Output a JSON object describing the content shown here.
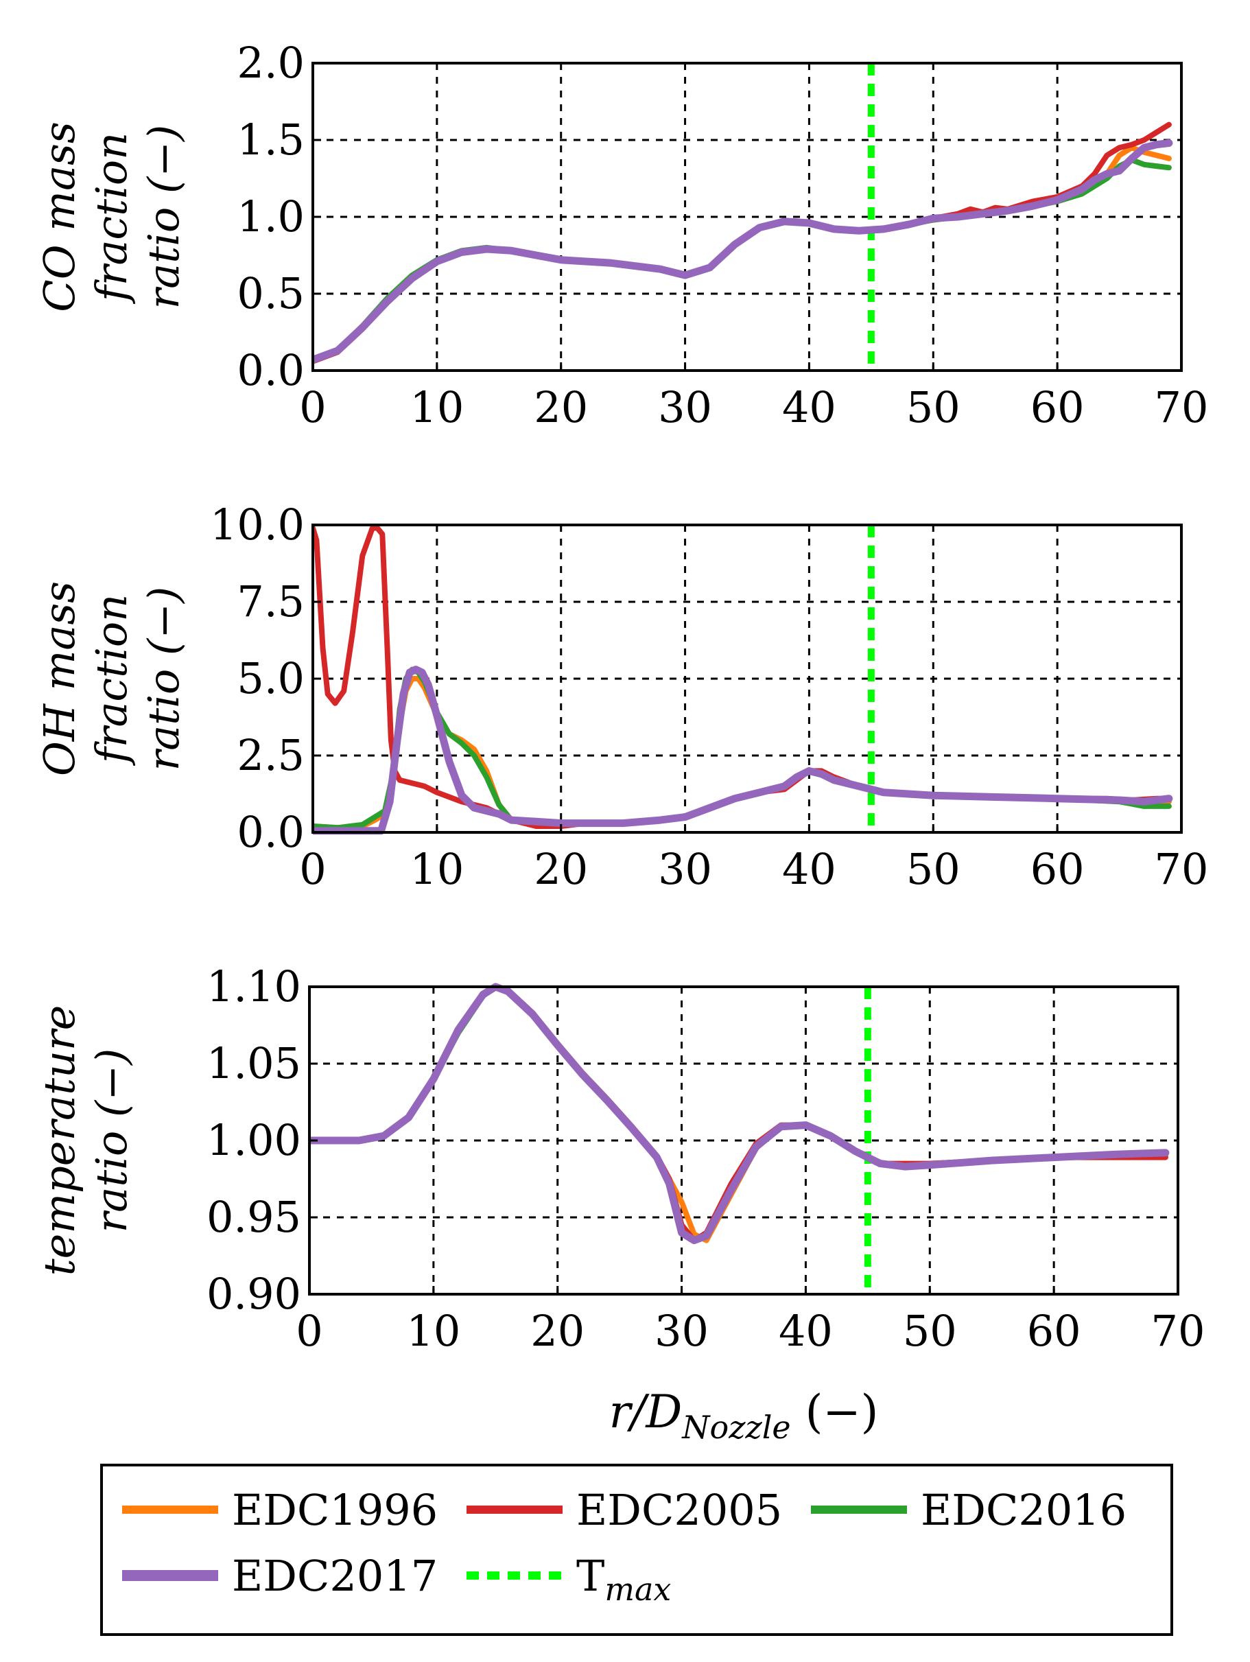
{
  "chart_data": [
    {
      "type": "line",
      "ylabel": [
        "CO mass",
        "fraction",
        "ratio (−)"
      ],
      "xlabel": "",
      "xlim": [
        0,
        70
      ],
      "ylim": [
        0,
        2.0
      ],
      "xticks": [
        "0",
        "10",
        "20",
        "30",
        "40",
        "50",
        "60",
        "70"
      ],
      "yticks": [
        "0.0",
        "0.5",
        "1.0",
        "1.5",
        "2.0"
      ],
      "ytick_values": [
        0,
        0.5,
        1.0,
        1.5,
        2.0
      ],
      "grid": true,
      "tmax_x": 45,
      "series": [
        {
          "name": "EDC1996",
          "x": [
            0,
            2,
            4,
            6,
            8,
            10,
            12,
            14,
            16,
            18,
            20,
            22,
            24,
            26,
            28,
            30,
            32,
            34,
            36,
            38,
            40,
            42,
            44,
            46,
            48,
            50,
            52,
            54,
            56,
            58,
            60,
            62,
            64,
            65,
            66,
            67,
            68,
            69
          ],
          "y": [
            0.07,
            0.13,
            0.28,
            0.45,
            0.6,
            0.71,
            0.77,
            0.79,
            0.78,
            0.75,
            0.72,
            0.71,
            0.7,
            0.68,
            0.66,
            0.62,
            0.67,
            0.82,
            0.93,
            0.97,
            0.96,
            0.92,
            0.91,
            0.92,
            0.95,
            0.98,
            1.0,
            1.02,
            1.04,
            1.07,
            1.11,
            1.17,
            1.28,
            1.4,
            1.45,
            1.42,
            1.4,
            1.38
          ]
        },
        {
          "name": "EDC2005",
          "x": [
            0,
            2,
            4,
            6,
            8,
            10,
            12,
            14,
            16,
            18,
            20,
            22,
            24,
            26,
            28,
            30,
            32,
            34,
            36,
            38,
            40,
            42,
            44,
            46,
            48,
            50,
            52,
            53,
            54,
            55,
            56,
            58,
            60,
            62,
            63,
            64,
            65,
            66,
            67,
            68,
            69
          ],
          "y": [
            0.06,
            0.12,
            0.27,
            0.45,
            0.6,
            0.71,
            0.77,
            0.79,
            0.78,
            0.75,
            0.72,
            0.71,
            0.7,
            0.68,
            0.66,
            0.62,
            0.67,
            0.82,
            0.93,
            0.97,
            0.96,
            0.92,
            0.91,
            0.92,
            0.95,
            0.99,
            1.02,
            1.05,
            1.03,
            1.06,
            1.05,
            1.1,
            1.13,
            1.2,
            1.28,
            1.4,
            1.45,
            1.47,
            1.5,
            1.55,
            1.6
          ]
        },
        {
          "name": "EDC2016",
          "x": [
            0,
            2,
            4,
            6,
            8,
            10,
            12,
            14,
            16,
            18,
            20,
            22,
            24,
            26,
            28,
            30,
            32,
            34,
            36,
            38,
            40,
            42,
            44,
            46,
            48,
            50,
            52,
            54,
            56,
            58,
            60,
            62,
            64,
            65,
            66,
            67,
            68,
            69
          ],
          "y": [
            0.07,
            0.13,
            0.29,
            0.47,
            0.62,
            0.72,
            0.78,
            0.8,
            0.78,
            0.75,
            0.72,
            0.71,
            0.7,
            0.68,
            0.66,
            0.62,
            0.67,
            0.82,
            0.93,
            0.97,
            0.96,
            0.92,
            0.91,
            0.92,
            0.95,
            0.98,
            1.0,
            1.02,
            1.04,
            1.07,
            1.1,
            1.15,
            1.25,
            1.33,
            1.37,
            1.34,
            1.33,
            1.32
          ]
        },
        {
          "name": "EDC2017",
          "x": [
            0,
            2,
            4,
            6,
            8,
            10,
            12,
            14,
            16,
            18,
            20,
            22,
            24,
            26,
            28,
            30,
            32,
            34,
            36,
            38,
            40,
            42,
            44,
            46,
            48,
            50,
            52,
            54,
            56,
            58,
            60,
            62,
            63,
            64,
            65,
            66,
            67,
            68,
            69
          ],
          "y": [
            0.07,
            0.13,
            0.28,
            0.45,
            0.6,
            0.71,
            0.77,
            0.79,
            0.78,
            0.75,
            0.72,
            0.71,
            0.7,
            0.68,
            0.66,
            0.62,
            0.67,
            0.82,
            0.93,
            0.97,
            0.96,
            0.92,
            0.91,
            0.92,
            0.95,
            0.99,
            1.0,
            1.02,
            1.04,
            1.07,
            1.11,
            1.18,
            1.24,
            1.28,
            1.3,
            1.38,
            1.45,
            1.47,
            1.48
          ]
        }
      ]
    },
    {
      "type": "line",
      "ylabel": [
        "OH mass",
        "fraction",
        "ratio (−)"
      ],
      "xlabel": "",
      "xlim": [
        0,
        70
      ],
      "ylim": [
        0,
        10.0
      ],
      "xticks": [
        "0",
        "10",
        "20",
        "30",
        "40",
        "50",
        "60",
        "70"
      ],
      "yticks": [
        "0.0",
        "2.5",
        "5.0",
        "7.5",
        "10.0"
      ],
      "ytick_values": [
        0,
        2.5,
        5.0,
        7.5,
        10.0
      ],
      "grid": true,
      "tmax_x": 45,
      "series": [
        {
          "name": "EDC1996",
          "x": [
            0,
            2,
            4,
            5,
            5.8,
            6.5,
            7,
            7.5,
            8,
            8.5,
            9,
            10,
            11,
            12,
            13,
            14,
            15,
            16,
            18,
            20,
            22,
            25,
            28,
            30,
            32,
            34,
            36,
            38,
            39,
            40,
            41,
            42,
            44,
            46,
            50,
            55,
            60,
            65,
            67,
            69
          ],
          "y": [
            0.2,
            0.15,
            0.2,
            0.4,
            0.6,
            1.8,
            3.5,
            4.6,
            5.0,
            5.0,
            4.7,
            3.8,
            3.2,
            3.0,
            2.7,
            2.0,
            0.9,
            0.4,
            0.3,
            0.3,
            0.3,
            0.3,
            0.4,
            0.5,
            0.8,
            1.1,
            1.3,
            1.5,
            1.8,
            2.0,
            1.9,
            1.7,
            1.5,
            1.3,
            1.2,
            1.15,
            1.1,
            1.05,
            1.0,
            1.0
          ]
        },
        {
          "name": "EDC2005",
          "x": [
            0,
            0.3,
            0.8,
            1.2,
            1.8,
            2.5,
            3.2,
            4,
            4.8,
            5.2,
            5.6,
            6.0,
            6.3,
            6.6,
            7,
            8,
            9,
            10,
            12,
            14,
            16,
            18,
            20,
            22,
            25,
            28,
            30,
            32,
            34,
            36,
            38,
            39,
            40,
            41,
            42,
            44,
            46,
            50,
            55,
            60,
            64,
            66,
            68,
            69
          ],
          "y": [
            9.9,
            9.5,
            6.0,
            4.5,
            4.2,
            4.6,
            6.5,
            9.0,
            9.9,
            9.9,
            9.7,
            6.0,
            3.0,
            2.0,
            1.7,
            1.6,
            1.5,
            1.3,
            1.0,
            0.8,
            0.4,
            0.2,
            0.2,
            0.3,
            0.3,
            0.4,
            0.5,
            0.8,
            1.1,
            1.3,
            1.4,
            1.7,
            2.0,
            2.0,
            1.8,
            1.5,
            1.3,
            1.2,
            1.15,
            1.1,
            1.1,
            1.05,
            1.1,
            1.1
          ]
        },
        {
          "name": "EDC2016",
          "x": [
            0,
            2,
            4,
            5,
            5.8,
            6.5,
            7,
            7.5,
            8,
            8.5,
            9,
            10,
            11,
            12,
            13,
            14,
            15,
            16,
            18,
            20,
            22,
            25,
            28,
            30,
            32,
            34,
            36,
            38,
            39,
            40,
            41,
            42,
            44,
            46,
            50,
            55,
            60,
            65,
            67,
            69
          ],
          "y": [
            0.2,
            0.15,
            0.25,
            0.5,
            0.7,
            2.0,
            4.0,
            5.0,
            5.3,
            5.2,
            4.9,
            3.9,
            3.2,
            2.9,
            2.5,
            1.8,
            0.9,
            0.4,
            0.3,
            0.3,
            0.3,
            0.3,
            0.4,
            0.5,
            0.8,
            1.1,
            1.3,
            1.5,
            1.8,
            2.0,
            1.9,
            1.7,
            1.5,
            1.3,
            1.2,
            1.15,
            1.1,
            1.0,
            0.85,
            0.85
          ]
        },
        {
          "name": "EDC2017",
          "x": [
            0,
            2,
            4,
            5.5,
            6.2,
            6.8,
            7.3,
            7.8,
            8.3,
            8.8,
            9.3,
            10,
            11,
            12,
            13,
            14,
            15,
            16,
            18,
            20,
            22,
            25,
            28,
            30,
            32,
            34,
            36,
            38,
            39,
            40,
            41,
            42,
            44,
            46,
            50,
            55,
            60,
            65,
            67,
            69
          ],
          "y": [
            0.05,
            0.05,
            0.05,
            0.05,
            1.0,
            3.0,
            4.5,
            5.2,
            5.3,
            5.2,
            4.8,
            3.8,
            2.3,
            1.2,
            0.8,
            0.7,
            0.6,
            0.4,
            0.35,
            0.3,
            0.3,
            0.3,
            0.4,
            0.5,
            0.8,
            1.1,
            1.3,
            1.5,
            1.8,
            2.0,
            1.9,
            1.7,
            1.5,
            1.3,
            1.2,
            1.15,
            1.1,
            1.05,
            1.0,
            1.1
          ]
        }
      ]
    },
    {
      "type": "line",
      "ylabel": [
        "temperature",
        "ratio (−)"
      ],
      "xlabel": "r/D_Nozzle (−)",
      "xlim": [
        0,
        70
      ],
      "ylim": [
        0.9,
        1.1
      ],
      "xticks": [
        "0",
        "10",
        "20",
        "30",
        "40",
        "50",
        "60",
        "70"
      ],
      "yticks": [
        "0.90",
        "0.95",
        "1.00",
        "1.05",
        "1.10"
      ],
      "ytick_values": [
        0.9,
        0.95,
        1.0,
        1.05,
        1.1
      ],
      "grid": true,
      "tmax_x": 45,
      "series": [
        {
          "name": "EDC1996",
          "x": [
            0,
            2,
            4,
            6,
            8,
            10,
            12,
            14,
            15,
            16,
            18,
            20,
            22,
            24,
            26,
            28,
            29,
            30,
            31,
            32,
            34,
            36,
            38,
            40,
            42,
            44,
            46,
            48,
            50,
            55,
            60,
            65,
            69
          ],
          "y": [
            1.0,
            1.0,
            1.0,
            1.003,
            1.015,
            1.04,
            1.072,
            1.095,
            1.1,
            1.097,
            1.082,
            1.063,
            1.044,
            1.027,
            1.009,
            0.99,
            0.975,
            0.96,
            0.939,
            0.935,
            0.965,
            0.995,
            1.009,
            1.01,
            1.003,
            0.993,
            0.985,
            0.983,
            0.985,
            0.987,
            0.989,
            0.99,
            0.99
          ]
        },
        {
          "name": "EDC2005",
          "x": [
            0,
            2,
            4,
            6,
            8,
            10,
            12,
            14,
            15,
            16,
            18,
            20,
            22,
            24,
            26,
            28,
            29,
            30,
            31,
            32,
            34,
            36,
            38,
            40,
            42,
            44,
            46,
            48,
            50,
            55,
            60,
            65,
            69
          ],
          "y": [
            1.0,
            1.0,
            1.0,
            1.003,
            1.015,
            1.04,
            1.072,
            1.095,
            1.1,
            1.098,
            1.083,
            1.063,
            1.044,
            1.027,
            1.009,
            0.99,
            0.975,
            0.945,
            0.935,
            0.94,
            0.972,
            0.998,
            1.01,
            1.01,
            1.003,
            0.993,
            0.985,
            0.985,
            0.985,
            0.987,
            0.989,
            0.989,
            0.989
          ]
        },
        {
          "name": "EDC2016",
          "x": [
            0,
            2,
            4,
            6,
            8,
            10,
            12,
            14,
            15,
            16,
            18,
            20,
            22,
            24,
            26,
            28,
            29,
            30,
            31,
            32,
            34,
            36,
            38,
            40,
            42,
            44,
            46,
            48,
            50,
            55,
            60,
            65,
            69
          ],
          "y": [
            1.0,
            1.0,
            1.0,
            1.003,
            1.015,
            1.04,
            1.07,
            1.094,
            1.1,
            1.097,
            1.082,
            1.062,
            1.043,
            1.026,
            1.008,
            0.989,
            0.974,
            0.945,
            0.935,
            0.938,
            0.968,
            0.996,
            1.009,
            1.01,
            1.003,
            0.993,
            0.985,
            0.983,
            0.984,
            0.987,
            0.989,
            0.991,
            0.992
          ]
        },
        {
          "name": "EDC2017",
          "x": [
            0,
            2,
            4,
            6,
            8,
            10,
            12,
            14,
            15,
            16,
            18,
            20,
            22,
            24,
            26,
            28,
            29,
            30,
            31,
            32,
            34,
            36,
            38,
            40,
            42,
            44,
            46,
            48,
            50,
            55,
            60,
            65,
            69
          ],
          "y": [
            1.0,
            1.0,
            1.0,
            1.003,
            1.015,
            1.04,
            1.072,
            1.095,
            1.1,
            1.097,
            1.082,
            1.062,
            1.043,
            1.026,
            1.008,
            0.989,
            0.972,
            0.94,
            0.935,
            0.938,
            0.968,
            0.996,
            1.009,
            1.01,
            1.003,
            0.993,
            0.985,
            0.983,
            0.984,
            0.987,
            0.989,
            0.991,
            0.992
          ]
        }
      ]
    }
  ],
  "legend": {
    "placement": "bottom",
    "entries": [
      {
        "name": "EDC1996",
        "label": "EDC1996",
        "color": "#ff7f0e"
      },
      {
        "name": "EDC2005",
        "label": "EDC2005",
        "color": "#d62728"
      },
      {
        "name": "EDC2016",
        "label": "EDC2016",
        "color": "#2ca02c"
      },
      {
        "name": "EDC2017",
        "label": "EDC2017",
        "color": "#9467bd"
      },
      {
        "name": "T_max",
        "label": "T",
        "label_sub": "max",
        "color": "#00ff00"
      }
    ]
  },
  "colors": {
    "EDC1996": "#ff7f0e",
    "EDC2005": "#d62728",
    "EDC2016": "#2ca02c",
    "EDC2017": "#9467bd",
    "T_max": "#00ff00"
  }
}
